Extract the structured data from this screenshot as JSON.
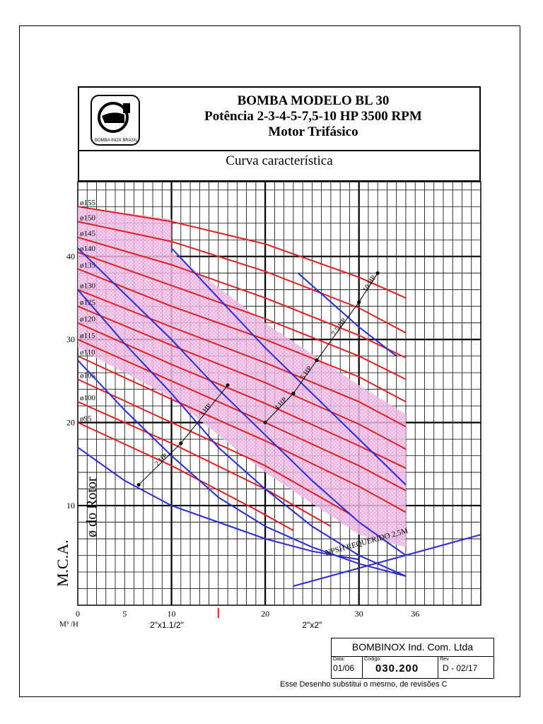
{
  "header": {
    "logo_text": "BOMBA INOX BRASIL",
    "title_line1": "BOMBA MODELO BL 30",
    "title_line2": "Potência 2-3-4-5-7,5-10 HP 3500 RPM",
    "title_line3": "Motor Trifásico",
    "subtitle": "Curva característica"
  },
  "chart_data": {
    "type": "line",
    "ylabel": "M.C.A.",
    "rotor_label": "ø do Rotor",
    "xunit": "M³ /H",
    "xlim": [
      0,
      43
    ],
    "ylim": [
      -2,
      49
    ],
    "xticks": [
      {
        "value": 0,
        "label": "0"
      },
      {
        "value": 5,
        "label": "5"
      },
      {
        "value": 10,
        "label": "10"
      },
      {
        "value": 20,
        "label": "20"
      },
      {
        "value": 30,
        "label": "30"
      },
      {
        "value": 36,
        "label": "36"
      }
    ],
    "yticks": [
      {
        "value": 10,
        "label": "10"
      },
      {
        "value": 20,
        "label": "20"
      },
      {
        "value": 30,
        "label": "30"
      },
      {
        "value": 40,
        "label": "40"
      }
    ],
    "pipe_labels": [
      {
        "x": 9.5,
        "label": "2\"x1.1/2\""
      },
      {
        "x": 25,
        "label": "2\"x2\""
      }
    ],
    "marker_x": 15,
    "rotor_curves": [
      {
        "label": "ø155",
        "points": [
          [
            0,
            46
          ],
          [
            10,
            44.2
          ],
          [
            20,
            41.5
          ],
          [
            30,
            37.5
          ],
          [
            35,
            35
          ]
        ]
      },
      {
        "label": "ø150",
        "points": [
          [
            0,
            44.2
          ],
          [
            10,
            41.8
          ],
          [
            20,
            38.2
          ],
          [
            30,
            33.8
          ],
          [
            35,
            30.8
          ]
        ]
      },
      {
        "label": "ø145",
        "points": [
          [
            0,
            42.3
          ],
          [
            10,
            39
          ],
          [
            20,
            35
          ],
          [
            30,
            30.5
          ],
          [
            35,
            27.8
          ]
        ]
      },
      {
        "label": "ø140",
        "points": [
          [
            0,
            40.5
          ],
          [
            10,
            36.5
          ],
          [
            20,
            32.5
          ],
          [
            30,
            28
          ],
          [
            35,
            25.2
          ]
        ]
      },
      {
        "label": "ø135",
        "points": [
          [
            0,
            38.5
          ],
          [
            10,
            34
          ],
          [
            20,
            30
          ],
          [
            30,
            25.5
          ],
          [
            35,
            22.5
          ]
        ]
      },
      {
        "label": "ø130",
        "points": [
          [
            0,
            36
          ],
          [
            10,
            31.5
          ],
          [
            20,
            27.2
          ],
          [
            30,
            22.5
          ],
          [
            35,
            19.5
          ]
        ]
      },
      {
        "label": "ø125",
        "points": [
          [
            0,
            34
          ],
          [
            10,
            29.3
          ],
          [
            20,
            24.8
          ],
          [
            30,
            19.8
          ],
          [
            35,
            16.8
          ]
        ]
      },
      {
        "label": "ø120",
        "points": [
          [
            0,
            32
          ],
          [
            10,
            27
          ],
          [
            20,
            22.3
          ],
          [
            30,
            17.2
          ],
          [
            35,
            14.5
          ]
        ]
      },
      {
        "label": "ø115",
        "points": [
          [
            0,
            30
          ],
          [
            10,
            25
          ],
          [
            20,
            20
          ],
          [
            30,
            14.8
          ],
          [
            35,
            11.8
          ]
        ]
      },
      {
        "label": "ø110",
        "points": [
          [
            0,
            28
          ],
          [
            10,
            22.8
          ],
          [
            20,
            17.8
          ],
          [
            30,
            12.3
          ],
          [
            35,
            9.2
          ]
        ]
      },
      {
        "label": "ø105",
        "points": [
          [
            0,
            25.2
          ],
          [
            10,
            20
          ],
          [
            20,
            14.8
          ],
          [
            29,
            9
          ]
        ]
      },
      {
        "label": "ø100",
        "points": [
          [
            0,
            22.5
          ],
          [
            10,
            17.5
          ],
          [
            20,
            12
          ],
          [
            27,
            7.5
          ]
        ]
      },
      {
        "label": "ø95",
        "points": [
          [
            0,
            20
          ],
          [
            10,
            14.8
          ],
          [
            19,
            9.5
          ],
          [
            23,
            7
          ]
        ]
      }
    ],
    "power_curves": [
      {
        "name": "2 HP",
        "points": [
          [
            0,
            17
          ],
          [
            5,
            13
          ],
          [
            10,
            10
          ],
          [
            15,
            8
          ],
          [
            20,
            6
          ],
          [
            25,
            4.5
          ],
          [
            30,
            3.5
          ]
        ]
      },
      {
        "name": "3 HP",
        "points": [
          [
            0,
            27.5
          ],
          [
            5,
            21.5
          ],
          [
            10,
            16
          ],
          [
            15,
            11
          ],
          [
            20,
            7.5
          ],
          [
            25,
            5
          ],
          [
            30,
            3
          ],
          [
            35,
            1.5
          ]
        ]
      },
      {
        "name": "4 HP",
        "points": [
          [
            0,
            36
          ],
          [
            5,
            29.5
          ],
          [
            10,
            23.5
          ],
          [
            15,
            17
          ],
          [
            20,
            12
          ],
          [
            25,
            7.5
          ],
          [
            30,
            4
          ],
          [
            35,
            1.5
          ]
        ]
      },
      {
        "name": "5 HP",
        "points": [
          [
            0,
            41
          ],
          [
            5,
            35.5
          ],
          [
            10,
            30
          ],
          [
            15,
            24
          ],
          [
            20,
            18.5
          ],
          [
            25,
            13
          ],
          [
            30,
            8
          ],
          [
            35,
            4
          ]
        ]
      },
      {
        "name": "7,5 HP",
        "points": [
          [
            10,
            41
          ],
          [
            15,
            35
          ],
          [
            20,
            29
          ],
          [
            25,
            23.5
          ],
          [
            30,
            18
          ],
          [
            35,
            12.5
          ]
        ]
      },
      {
        "name": "10 HP",
        "points": [
          [
            23.5,
            38
          ],
          [
            27,
            34.5
          ],
          [
            30,
            31.5
          ],
          [
            34,
            28
          ]
        ]
      }
    ],
    "power_markers": [
      {
        "label": "2 HP",
        "from": [
          6.5,
          12.5
        ],
        "to": [
          11,
          17.5
        ]
      },
      {
        "label": "3 HP",
        "from": [
          11,
          17.5
        ],
        "to": [
          16,
          24.5
        ]
      },
      {
        "label": "4 HP",
        "from": [
          20,
          20
        ],
        "to": [
          23,
          23.5
        ]
      },
      {
        "label": "5 HP",
        "from": [
          23,
          23.5
        ],
        "to": [
          25.5,
          27.5
        ]
      },
      {
        "label": "7,5 HP",
        "from": [
          25.5,
          27.5
        ],
        "to": [
          30,
          34.5
        ]
      },
      {
        "label": "10 HP",
        "from": [
          30,
          34.5
        ],
        "to": [
          32,
          38
        ]
      }
    ],
    "npsh": {
      "label": "NPSH REQUERIDO 2,5M",
      "points": [
        [
          23,
          0.3
        ],
        [
          43,
          6.5
        ]
      ]
    },
    "shaded_region": [
      [
        0,
        46
      ],
      [
        10,
        44.5
      ],
      [
        10,
        40.5
      ],
      [
        20,
        32
      ],
      [
        30,
        24.5
      ],
      [
        35,
        21
      ],
      [
        35,
        5
      ],
      [
        30,
        6.5
      ],
      [
        20,
        14
      ],
      [
        10,
        23
      ],
      [
        0,
        29
      ]
    ]
  },
  "title_box": {
    "company": "BOMBINOX Ind. Com. Ltda",
    "date_label": "Data:",
    "date_value": "01/06",
    "code_label": "Codigo:",
    "code_value": "030.200",
    "rev_label": "Rev.",
    "rev_value": "D - 02/17",
    "note": "Esse Desenho substitui o mesmo, de revisões C"
  },
  "colors": {
    "rotor_curve": "#e02020",
    "power_curve": "#2a2ad8",
    "shade": "#f4c7ea",
    "marker": "#e02020"
  }
}
